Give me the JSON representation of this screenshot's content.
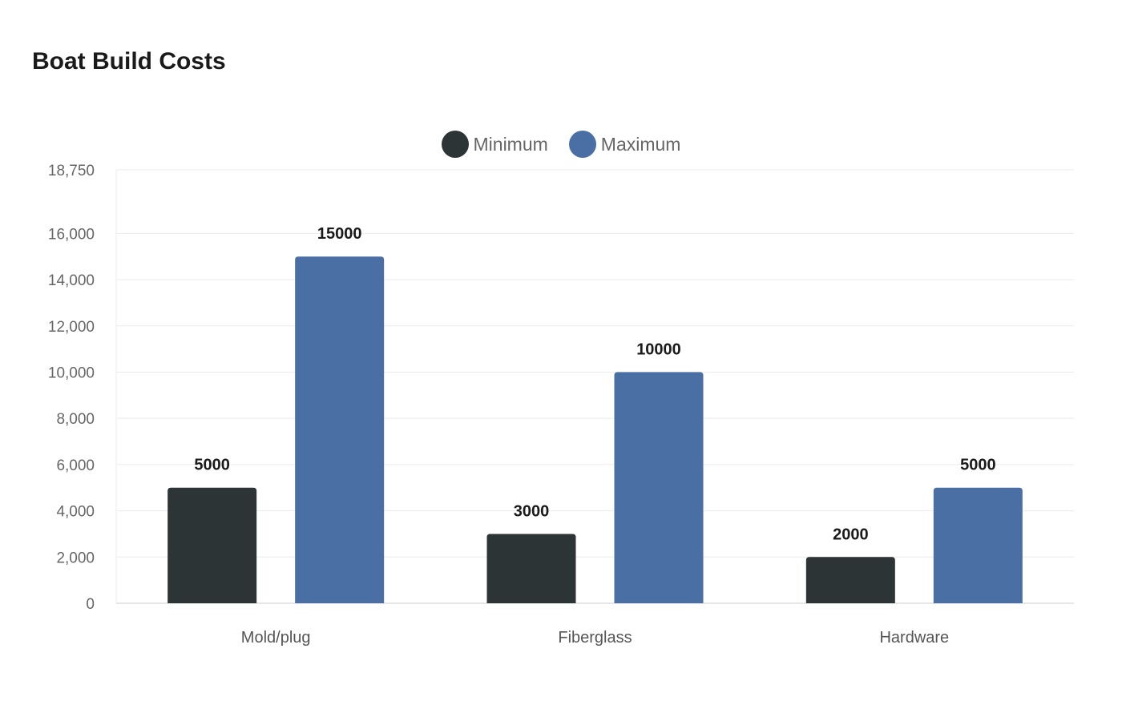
{
  "chart_data": {
    "type": "bar",
    "title": "Boat Build Costs",
    "categories": [
      "Mold/plug",
      "Fiberglass",
      "Hardware"
    ],
    "series": [
      {
        "name": "Minimum",
        "values": [
          5000,
          3000,
          2000
        ],
        "color": "#2d3436"
      },
      {
        "name": "Maximum",
        "values": [
          15000,
          10000,
          5000
        ],
        "color": "#4a6fa5"
      }
    ],
    "ylim": [
      0,
      18750
    ],
    "yticks": [
      0,
      2000,
      4000,
      6000,
      8000,
      10000,
      12000,
      14000,
      16000,
      18750
    ],
    "ytick_labels": [
      "0",
      "2,000",
      "4,000",
      "6,000",
      "8,000",
      "10,000",
      "12,000",
      "14,000",
      "16,000",
      "18,750"
    ],
    "grid": true,
    "legend_position": "top-center",
    "data_labels": true
  }
}
